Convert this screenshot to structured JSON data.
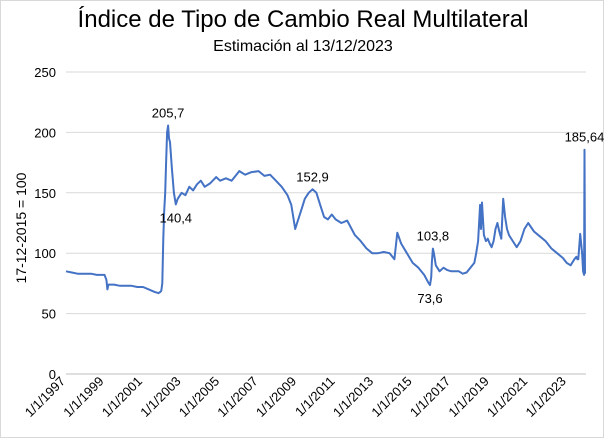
{
  "chart_data": {
    "type": "line",
    "title": "Índice de Tipo de Cambio Real Multilateral",
    "subtitle": "Estimación al 13/12/2023",
    "ylabel": "17-12-2015 = 100",
    "xlabel": "",
    "ylim": [
      0,
      250
    ],
    "yticks": [
      0,
      50,
      100,
      150,
      200,
      250
    ],
    "xlim": [
      1997.0,
      2024.0
    ],
    "xticks": [
      "1/1/1997",
      "1/1/1999",
      "1/1/2001",
      "1/1/2003",
      "1/1/2005",
      "1/1/2007",
      "1/1/2009",
      "1/1/2011",
      "1/1/2013",
      "1/1/2015",
      "1/1/2017",
      "1/1/2019",
      "1/1/2021",
      "1/1/2023"
    ],
    "grid": "horizontal",
    "line_color": "#4472c4",
    "series": [
      {
        "x": [
          1997.0,
          1997.3,
          1997.6,
          1998.0,
          1998.3,
          1998.6,
          1998.9,
          1999.0,
          1999.1,
          1999.15,
          1999.2,
          1999.5,
          1999.8,
          2000.1,
          2000.4,
          2000.7,
          2001.0,
          2001.3,
          2001.6,
          2001.8,
          2001.9,
          2001.95,
          2002.0,
          2002.05,
          2002.1,
          2002.15,
          2002.2,
          2002.25,
          2002.3,
          2002.35,
          2002.4,
          2002.5,
          2002.6,
          2002.7,
          2002.8,
          2003.0,
          2003.2,
          2003.4,
          2003.6,
          2003.8,
          2004.0,
          2004.2,
          2004.5,
          2004.8,
          2005.0,
          2005.3,
          2005.6,
          2006.0,
          2006.3,
          2006.6,
          2007.0,
          2007.3,
          2007.6,
          2007.9,
          2008.2,
          2008.5,
          2008.7,
          2008.9,
          2009.0,
          2009.2,
          2009.4,
          2009.6,
          2009.8,
          2010.0,
          2010.2,
          2010.4,
          2010.6,
          2010.8,
          2011.0,
          2011.3,
          2011.6,
          2012.0,
          2012.3,
          2012.6,
          2012.9,
          2013.2,
          2013.5,
          2013.8,
          2014.0,
          2014.05,
          2014.2,
          2014.4,
          2014.7,
          2015.0,
          2015.3,
          2015.6,
          2015.8,
          2015.9,
          2015.96,
          2016.0,
          2016.05,
          2016.1,
          2016.2,
          2016.4,
          2016.6,
          2016.8,
          2017.0,
          2017.2,
          2017.4,
          2017.6,
          2017.8,
          2018.0,
          2018.2,
          2018.3,
          2018.4,
          2018.5,
          2018.55,
          2018.6,
          2018.7,
          2018.8,
          2018.9,
          2019.0,
          2019.1,
          2019.2,
          2019.3,
          2019.4,
          2019.5,
          2019.6,
          2019.7,
          2019.8,
          2019.9,
          2020.0,
          2020.2,
          2020.4,
          2020.6,
          2020.8,
          2021.0,
          2021.3,
          2021.6,
          2021.9,
          2022.2,
          2022.5,
          2022.8,
          2023.0,
          2023.2,
          2023.4,
          2023.5,
          2023.55,
          2023.6,
          2023.7,
          2023.8,
          2023.85,
          2023.9,
          2023.92,
          2023.95
        ],
        "y": [
          85,
          84,
          83,
          83,
          83,
          82,
          82,
          82,
          78,
          70,
          74,
          74,
          73,
          73,
          73,
          72,
          72,
          70,
          68,
          67,
          68,
          69,
          75,
          112,
          135,
          150,
          175,
          200,
          205.7,
          195,
          192,
          170,
          150,
          140.4,
          145,
          150,
          148,
          155,
          152,
          157,
          160,
          155,
          158,
          163,
          160,
          162,
          160,
          168,
          165,
          167,
          168,
          164,
          165,
          160,
          155,
          148,
          140,
          120,
          125,
          135,
          145,
          150,
          152.9,
          150,
          140,
          130,
          128,
          132,
          128,
          125,
          127,
          115,
          110,
          104,
          100,
          100,
          101,
          100,
          96,
          95,
          117,
          108,
          100,
          92,
          88,
          82,
          76,
          73.6,
          80,
          93,
          103.8,
          100,
          90,
          85,
          88,
          86,
          85,
          85,
          85,
          83,
          84,
          88,
          92,
          100,
          110,
          140,
          120,
          142,
          115,
          110,
          112,
          108,
          105,
          110,
          120,
          125,
          118,
          112,
          145,
          130,
          120,
          115,
          110,
          105,
          110,
          120,
          125,
          118,
          114,
          110,
          104,
          100,
          96,
          92,
          90,
          95,
          97,
          95,
          95,
          116,
          100,
          85,
          82,
          185.64,
          83
        ]
      }
    ],
    "annotations": [
      {
        "text": "205,7",
        "x": 2002.3,
        "y": 205.7,
        "pos": "above"
      },
      {
        "text": "140,4",
        "x": 2002.7,
        "y": 140.4,
        "pos": "below"
      },
      {
        "text": "152,9",
        "x": 2009.8,
        "y": 152.9,
        "pos": "above"
      },
      {
        "text": "103,8",
        "x": 2016.05,
        "y": 103.8,
        "pos": "above"
      },
      {
        "text": "73,6",
        "x": 2015.9,
        "y": 73.6,
        "pos": "below"
      },
      {
        "text": "185,64",
        "x": 2023.92,
        "y": 185.64,
        "pos": "above"
      }
    ]
  }
}
